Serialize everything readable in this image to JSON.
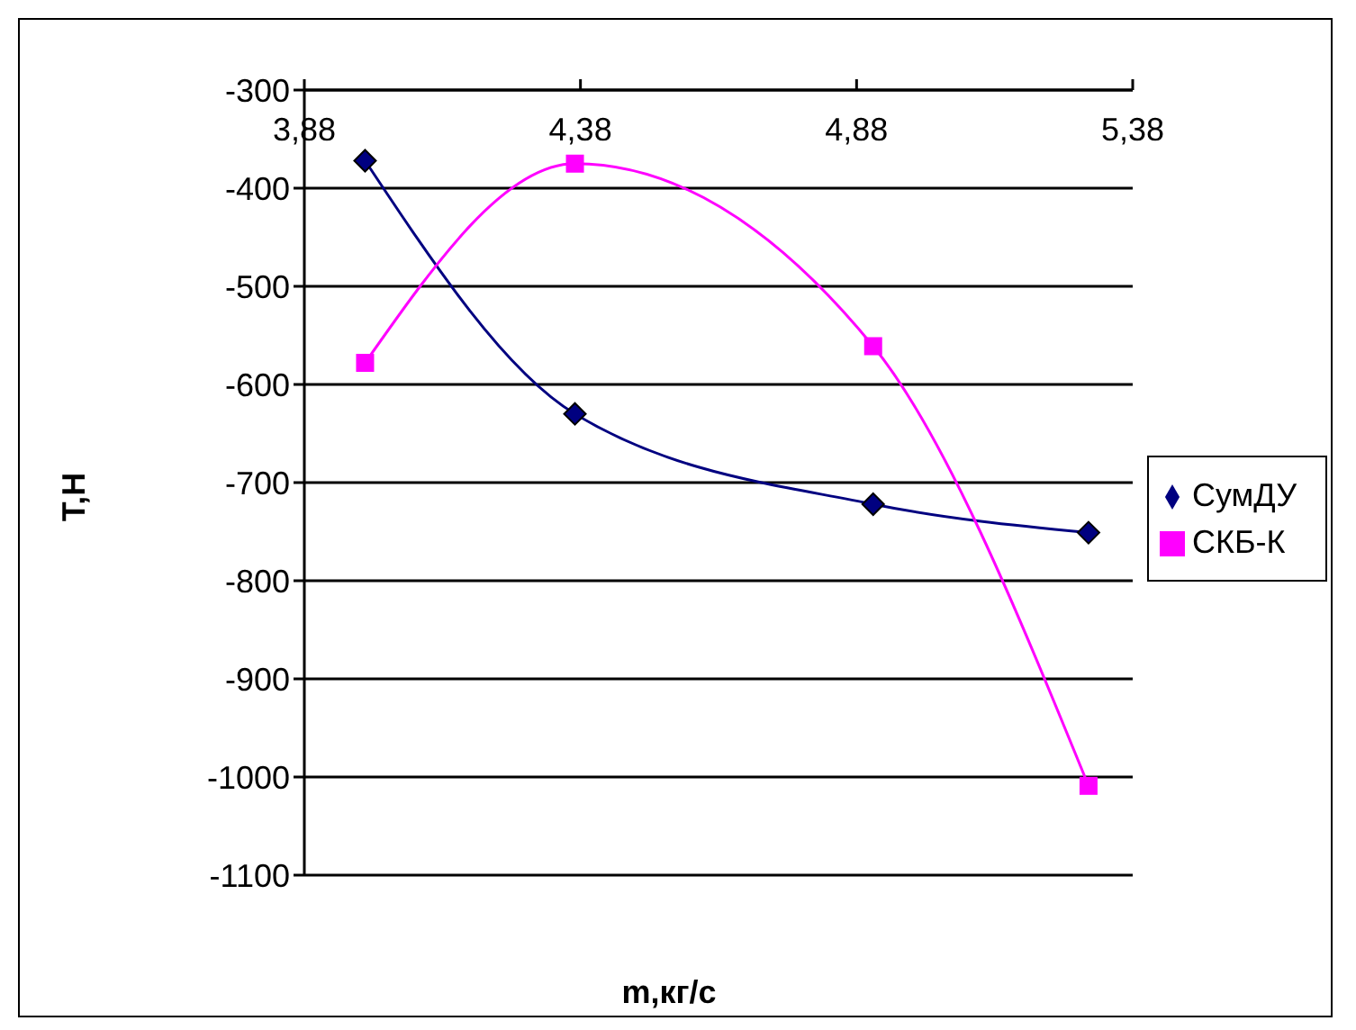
{
  "chart_data": {
    "type": "line",
    "xlabel": "m,кг/с",
    "ylabel": "Т,Н",
    "x": [
      3.99,
      4.37,
      4.91,
      5.3
    ],
    "series": [
      {
        "name": "СумДУ",
        "color": "#000080",
        "values": [
          -372,
          -630,
          -722,
          -751
        ],
        "marker": "diamond"
      },
      {
        "name": "СКБ-К",
        "color": "#ff00ff",
        "values": [
          -578,
          -375,
          -561,
          -1009
        ],
        "marker": "square"
      }
    ],
    "xlim": [
      3.88,
      5.38
    ],
    "xticks": [
      {
        "value": 3.88,
        "label": "3,88"
      },
      {
        "value": 4.38,
        "label": "4,38"
      },
      {
        "value": 4.88,
        "label": "4,88"
      },
      {
        "value": 5.38,
        "label": "5,38"
      }
    ],
    "ylim": [
      -1100,
      -300
    ],
    "yticks": [
      -300,
      -400,
      -500,
      -600,
      -700,
      -800,
      -900,
      -1000,
      -1100
    ],
    "grid": "y",
    "legend": "right",
    "line_style": "solid"
  }
}
